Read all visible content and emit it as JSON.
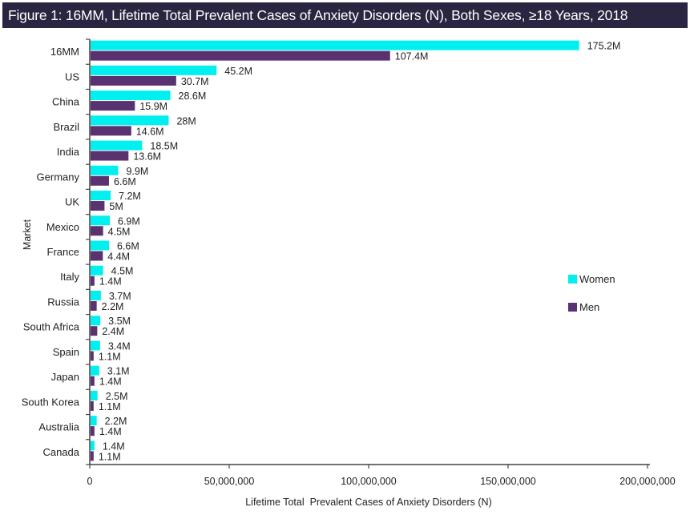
{
  "chart_data": {
    "type": "bar",
    "orientation": "horizontal",
    "title": "Figure 1: 16MM, Lifetime Total Prevalent Cases of Anxiety Disorders (N), Both Sexes, ≥18 Years, 2018",
    "xlabel": "Lifetime Total  Prevalent Cases of Anxiety Disorders (N)",
    "ylabel": "Market",
    "xlim": [
      0,
      200000000
    ],
    "x_ticks": [
      0,
      50000000,
      100000000,
      150000000,
      200000000
    ],
    "x_tick_labels": [
      "0",
      "50,000,000",
      "100,000,000",
      "150,000,000",
      "200,000,000"
    ],
    "grid": false,
    "legend_position": "right",
    "categories": [
      "16MM",
      "US",
      "China",
      "Brazil",
      "India",
      "Germany",
      "UK",
      "Mexico",
      "France",
      "Italy",
      "Russia",
      "South Africa",
      "Spain",
      "Japan",
      "South Korea",
      "Australia",
      "Canada"
    ],
    "series": [
      {
        "name": "Women",
        "color": "#00f0f0",
        "values": [
          175200000,
          45200000,
          28600000,
          28000000,
          18500000,
          9900000,
          7200000,
          6900000,
          6600000,
          4500000,
          3700000,
          3500000,
          3400000,
          3100000,
          2500000,
          2200000,
          1400000
        ],
        "labels": [
          "175.2M",
          "45.2M",
          "28.6M",
          "28M",
          "18.5M",
          "9.9M",
          "7.2M",
          "6.9M",
          "6.6M",
          "4.5M",
          "3.7M",
          "3.5M",
          "3.4M",
          "3.1M",
          "2.5M",
          "2.2M",
          "1.4M"
        ]
      },
      {
        "name": "Men",
        "color": "#5b3270",
        "values": [
          107400000,
          30700000,
          15900000,
          14600000,
          13600000,
          6600000,
          5000000,
          4500000,
          4400000,
          1400000,
          2200000,
          2400000,
          1100000,
          1400000,
          1100000,
          1400000,
          1100000
        ],
        "labels": [
          "107.4M",
          "30.7M",
          "15.9M",
          "14.6M",
          "13.6M",
          "6.6M",
          "5M",
          "4.5M",
          "4.4M",
          "1.4M",
          "2.2M",
          "2.4M",
          "1.1M",
          "1.4M",
          "1.1M",
          "1.4M",
          "1.1M"
        ]
      }
    ]
  },
  "colors": {
    "title_background": "#2a2540",
    "title_text": "#ffffff",
    "axis": "#444444"
  }
}
